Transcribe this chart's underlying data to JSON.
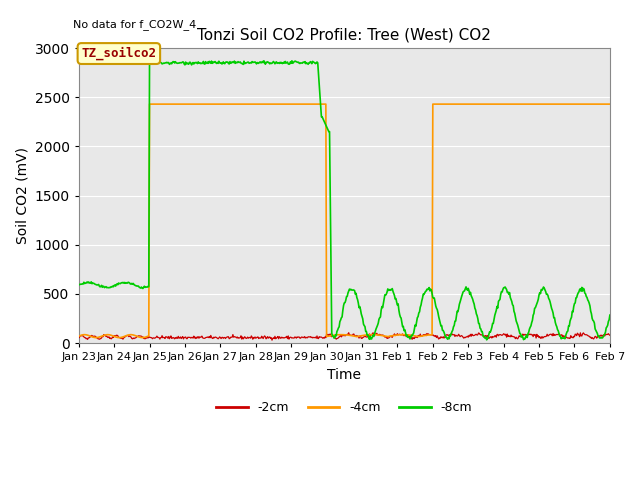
{
  "title": "Tonzi Soil CO2 Profile: Tree (West) CO2",
  "no_data_label": "No data for f_CO2W_4",
  "ylabel": "Soil CO2 (mV)",
  "xlabel": "Time",
  "legend_label": "TZ_soilco2",
  "legend_entries": [
    "-2cm",
    "-4cm",
    "-8cm"
  ],
  "legend_colors": [
    "#cc0000",
    "#ff9900",
    "#00cc00"
  ],
  "bg_color": "#e8e8e8",
  "ylim": [
    0,
    3000
  ],
  "xlim_start": 0,
  "xlim_end": 360,
  "xtick_labels": [
    "Jan 23",
    "Jan 24",
    "Jan 25",
    "Jan 26",
    "Jan 27",
    "Jan 28",
    "Jan 29",
    "Jan 30",
    "Jan 31",
    "Feb 1",
    "Feb 2",
    "Feb 3",
    "Feb 4",
    "Feb 5",
    "Feb 6",
    "Feb 7"
  ],
  "xtick_positions": [
    0,
    24,
    48,
    72,
    96,
    120,
    144,
    168,
    192,
    216,
    240,
    264,
    288,
    312,
    336,
    360
  ],
  "green_high": 2850,
  "green_low_pre": 590,
  "green_osc_peak": 550,
  "green_osc_min": 50,
  "orange_high": 2430,
  "orange_low": 65,
  "red_low": 50,
  "red_high": 80,
  "t1_green_rise": 48,
  "t1_green_drop_start": 162,
  "t1_green_drop_end": 172,
  "t1_orange_rise": 48,
  "t1_orange_drop": 168,
  "t2_orange_rise": 240,
  "title_fontsize": 11,
  "axis_label_fontsize": 10,
  "tick_fontsize": 8
}
